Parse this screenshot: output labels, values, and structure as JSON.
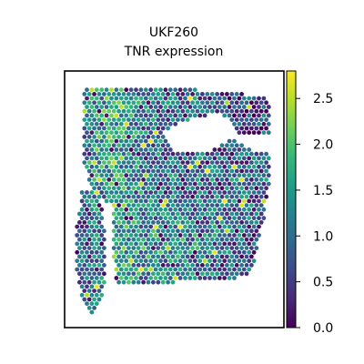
{
  "chart_data": {
    "type": "heatmap",
    "title": "UKF260",
    "subtitle": "TNR expression",
    "xlabel": "",
    "ylabel": "",
    "grid": false,
    "colormap": "viridis",
    "colorbar": {
      "min": 0.0,
      "max": 2.8,
      "ticks": [
        0.0,
        0.5,
        1.0,
        1.5,
        2.0,
        2.5
      ],
      "tick_labels": [
        "0.0",
        "0.5",
        "1.0",
        "1.5",
        "2.0",
        "2.5"
      ]
    },
    "colors": {
      "viridis": [
        "#440154",
        "#482878",
        "#3e4989",
        "#31688e",
        "#26828e",
        "#1f9e89",
        "#35b779",
        "#6ece58",
        "#b5de2b",
        "#fde725"
      ]
    },
    "seed": 260
  }
}
